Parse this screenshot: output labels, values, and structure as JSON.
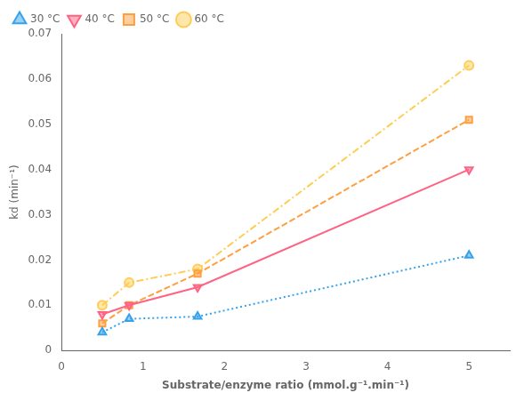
{
  "chart_data": {
    "type": "line",
    "x_label": "Substrate/enzyme ratio (mmol.g⁻¹.min⁻¹)",
    "y_label": "kd (min⁻¹)",
    "x": [
      0.5,
      0.83,
      1.67,
      5.0
    ],
    "series": [
      {
        "name": "30 °C",
        "values": [
          0.004,
          0.007,
          0.0075,
          0.021
        ],
        "marker": "triangle-up",
        "line_style": "dotted"
      },
      {
        "name": "40 °C",
        "values": [
          0.008,
          0.01,
          0.014,
          0.04
        ],
        "marker": "triangle-down",
        "line_style": "solid"
      },
      {
        "name": "50 °C",
        "values": [
          0.006,
          0.01,
          0.017,
          0.051
        ],
        "marker": "square",
        "line_style": "dashed"
      },
      {
        "name": "60 °C",
        "values": [
          0.01,
          0.015,
          0.018,
          0.063
        ],
        "marker": "circle",
        "line_style": "dashdot"
      }
    ],
    "xlim": [
      0,
      5.5
    ],
    "ylim": [
      0,
      0.07
    ],
    "xticks": [
      0,
      1,
      2,
      3,
      4,
      5
    ],
    "yticks": [
      0,
      0.01,
      0.02,
      0.03,
      0.04,
      0.05,
      0.06,
      0.07
    ],
    "grid": false,
    "legend": "upper left"
  }
}
